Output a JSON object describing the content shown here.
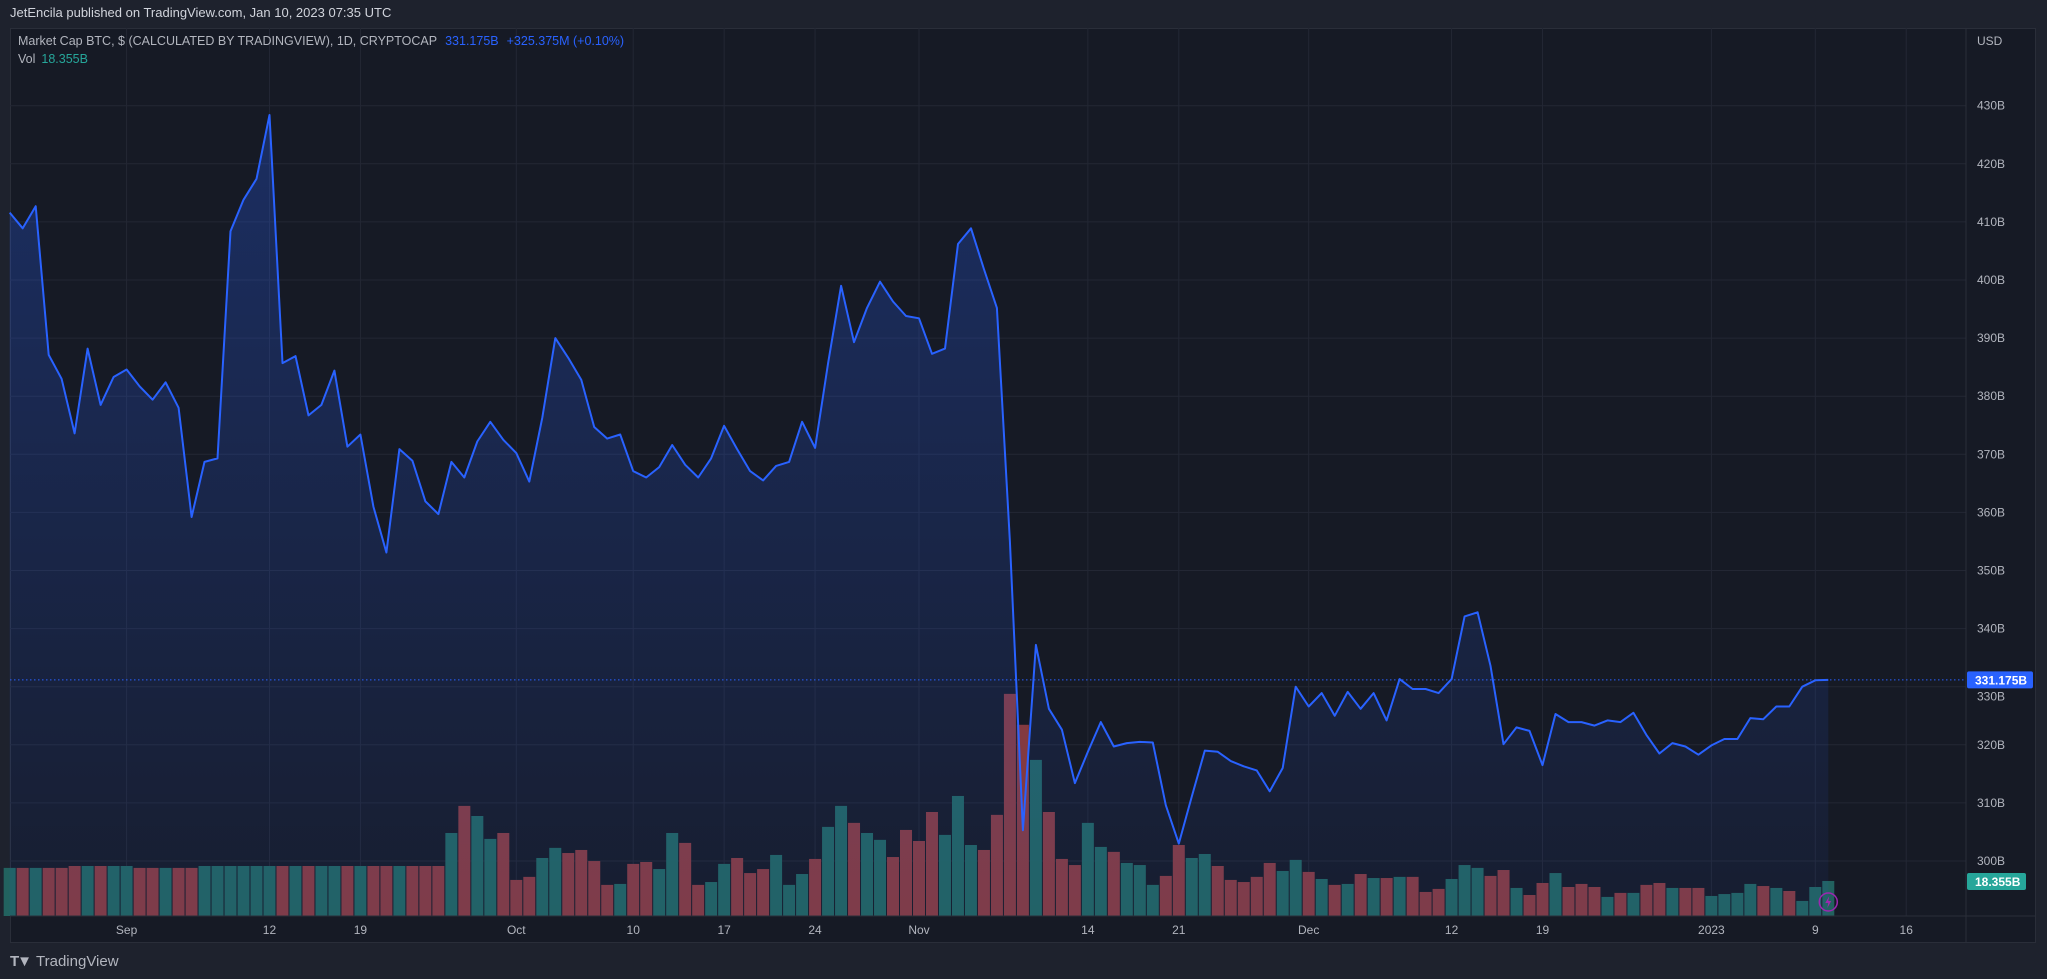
{
  "header": {
    "publish_text": "JetEncila published on TradingView.com, Jan 10, 2023 07:35 UTC"
  },
  "legend": {
    "symbol": "Market Cap BTC, $ (CALCULATED BY TRADINGVIEW), 1D, CRYPTOCAP",
    "last": "331.175B",
    "change": "+325.375M (+0.10%)",
    "vol_label": "Vol",
    "vol_value": "18.355B"
  },
  "footer": {
    "logo_text": "TradingView",
    "logo_mark": "TV"
  },
  "colors": {
    "line": "#2962ff",
    "up": "#26a69a",
    "down": "#ef5350",
    "vol_up": "#22625f",
    "vol_down": "#833a40"
  },
  "chart_data": {
    "type": "area",
    "title": "Market Cap BTC, $ (CALCULATED BY TRADINGVIEW), 1D, CRYPTOCAP",
    "currency": "USD",
    "x_start": "2022-08-23",
    "x_end": "2023-01-10",
    "ylim": [
      293,
      438
    ],
    "yticks": [
      "430B",
      "420B",
      "410B",
      "400B",
      "390B",
      "380B",
      "370B",
      "360B",
      "350B",
      "340B",
      "330B",
      "320B",
      "310B",
      "300B"
    ],
    "ytick_values": [
      430,
      420,
      410,
      400,
      390,
      380,
      370,
      360,
      350,
      340,
      330,
      320,
      310,
      300
    ],
    "xticks": [
      {
        "label": "Sep",
        "day": 0
      },
      {
        "label": "12",
        "day": 11
      },
      {
        "label": "19",
        "day": 18
      },
      {
        "label": "Oct",
        "day": 30
      },
      {
        "label": "10",
        "day": 39
      },
      {
        "label": "17",
        "day": 46
      },
      {
        "label": "24",
        "day": 53
      },
      {
        "label": "Nov",
        "day": 61
      },
      {
        "label": "14",
        "day": 74
      },
      {
        "label": "21",
        "day": 81
      },
      {
        "label": "Dec",
        "day": 91
      },
      {
        "label": "12",
        "day": 102
      },
      {
        "label": "19",
        "day": 109
      },
      {
        "label": "2023",
        "day": 122
      },
      {
        "label": "9",
        "day": 130
      },
      {
        "label": "16",
        "day": 137
      }
    ],
    "day_offset": -9,
    "last_price": 331.175,
    "last_price_label": "331.175B",
    "last_volume_label": "18.355B",
    "values_B": [
      411.6,
      408.9,
      412.7,
      387.1,
      383,
      373.6,
      388.2,
      378.5,
      383.3,
      384.6,
      381.7,
      379.4,
      382.4,
      378,
      359.2,
      368.7,
      369.3,
      408.4,
      413.8,
      417.4,
      428.4,
      385.7,
      386.9,
      376.7,
      378.5,
      384.4,
      371.3,
      373.4,
      361,
      353.1,
      370.9,
      368.9,
      361.9,
      359.7,
      368.7,
      366,
      372.2,
      375.6,
      372.5,
      370.2,
      365.3,
      376.3,
      390,
      386.6,
      382.8,
      374.7,
      372.7,
      373.4,
      367.1,
      366,
      367.8,
      371.6,
      368.2,
      366,
      369.3,
      374.9,
      370.9,
      367.1,
      365.5,
      368,
      368.7,
      375.6,
      371.1,
      385.7,
      399,
      389.3,
      395.2,
      399.7,
      396.3,
      393.8,
      393.4,
      387.3,
      388.2,
      406.2,
      408.9,
      401.9,
      395.2,
      355,
      305.3,
      337.2,
      326.2,
      322.6,
      313.4,
      318.8,
      323.9,
      319.7,
      320.3,
      320.5,
      320.4,
      309.6,
      303,
      311.1,
      319,
      318.8,
      317.2,
      316.3,
      315.6,
      312,
      316,
      330,
      326.6,
      328.9,
      325,
      329.1,
      326.2,
      328.9,
      324.2,
      331.3,
      329.6,
      329.6,
      328.9,
      331.3,
      342.1,
      342.8,
      333.6,
      320.1,
      323,
      322.4,
      316.5,
      325.3,
      323.9,
      323.9,
      323.3,
      324.2,
      323.9,
      325.5,
      321.7,
      318.5,
      320.3,
      319.7,
      318.3,
      319.9,
      321,
      321,
      324.6,
      324.4,
      326.6,
      326.6,
      330,
      331.1,
      331.175
    ],
    "volume_B": [
      25.2,
      25.2,
      25.2,
      25.2,
      25.2,
      26.2,
      26.2,
      26.2,
      26.2,
      26.2,
      25.2,
      25.2,
      25.2,
      25.2,
      25.2,
      26.2,
      26.2,
      26.2,
      26.2,
      26.2,
      26.2,
      26.2,
      26.2,
      26.2,
      26.2,
      26.2,
      26.2,
      26.2,
      26.2,
      26.2,
      26.2,
      26.2,
      26.2,
      26.2,
      43.5,
      57.7,
      52.4,
      40.4,
      43.5,
      18.9,
      20.5,
      30.4,
      35.7,
      33.0,
      34.6,
      28.8,
      16.3,
      16.8,
      27.3,
      28.3,
      24.6,
      43.5,
      38.3,
      16.3,
      17.8,
      27.3,
      30.4,
      22.5,
      24.6,
      32.0,
      16.3,
      22.0,
      29.9,
      46.7,
      57.7,
      48.8,
      43.5,
      39.9,
      30.9,
      45.1,
      39.3,
      54.5,
      42.5,
      62.9,
      37.2,
      34.6,
      53.0,
      116.4,
      100.2,
      81.8,
      54.5,
      29.9,
      26.7,
      48.8,
      36.2,
      33.6,
      27.8,
      26.7,
      16.3,
      21.0,
      37.2,
      30.4,
      32.5,
      26.2,
      18.9,
      17.8,
      20.5,
      27.8,
      23.6,
      29.4,
      23.1,
      19.4,
      16.3,
      16.8,
      22.0,
      19.9,
      19.9,
      20.5,
      20.5,
      12.6,
      14.2,
      19.4,
      26.7,
      25.2,
      21.0,
      24.1,
      14.7,
      11.0,
      17.3,
      22.5,
      15.2,
      16.8,
      15.2,
      10.0,
      12.1,
      12.1,
      16.3,
      17.3,
      14.7,
      14.7,
      14.7,
      10.5,
      11.5,
      12.1,
      16.8,
      15.7,
      14.7,
      13.1,
      7.9,
      15.2,
      18.355
    ],
    "volume_dir": "GRGRRRGRGGRRGRRGGGGGGRGRGGRGRRGRRRGRGGRRRGGRRRRGRRGGRRGGRRRGGGRGGRGGRRRRGGGRRRRGRRRGGRGGGRRGGRRRRRGGRGRGRGRGRRRGGGRRGRRGRRRGRGRRGRRGGGGRGRGGG",
    "grid": true,
    "legend": "top-left"
  }
}
